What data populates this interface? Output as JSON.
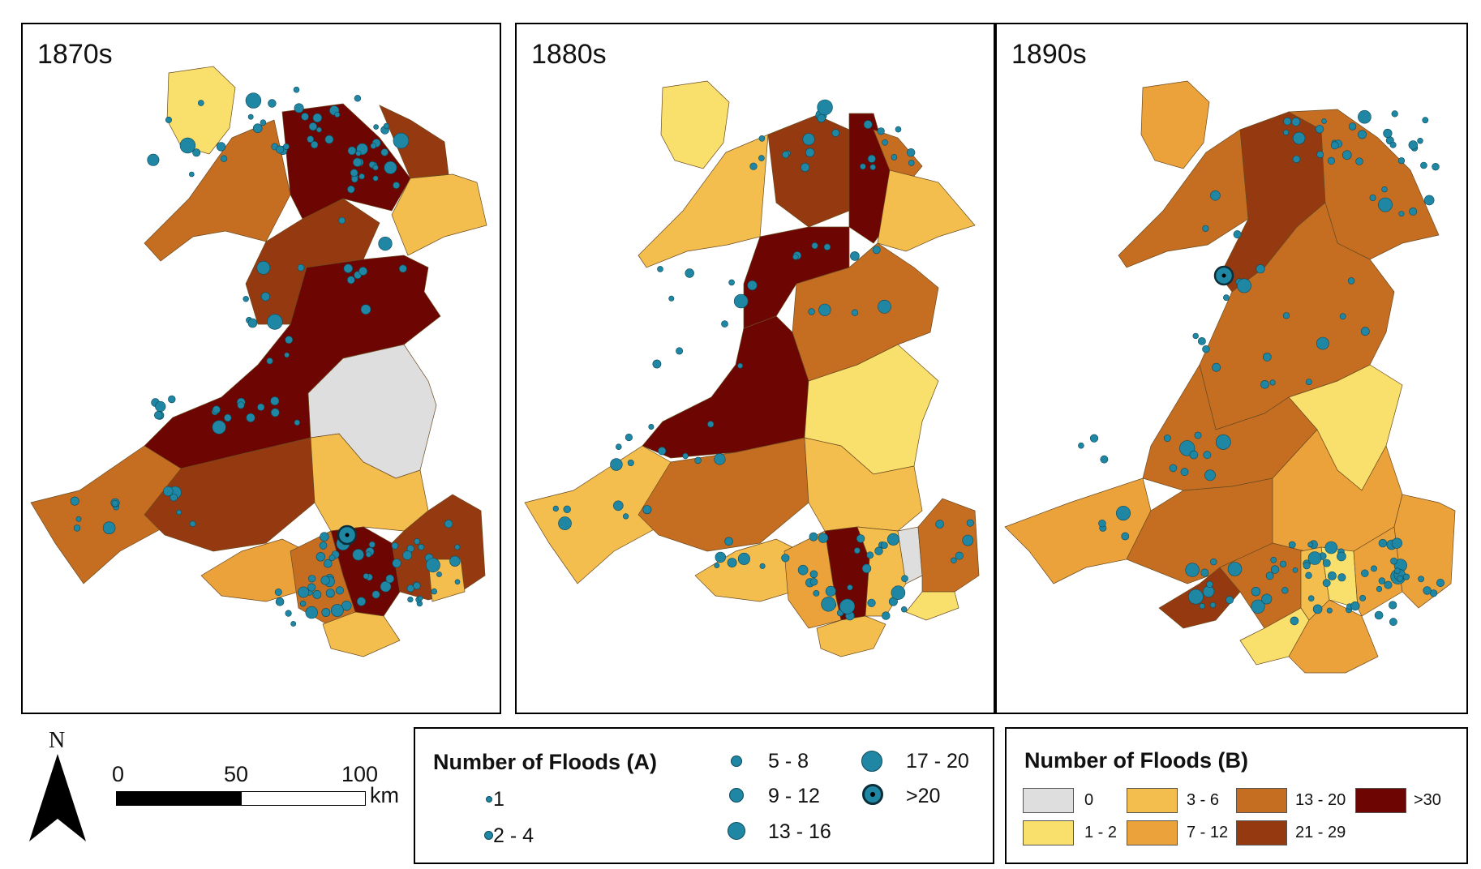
{
  "colors": {
    "c0": "#dedede",
    "c1_2": "#f9df6b",
    "c3_6": "#f3be4e",
    "c7_12": "#ecA23a",
    "c13_20": "#c56e22",
    "c21_29": "#953a10",
    "c30": "#6d0502",
    "dot": "#1f87a3"
  },
  "panels": [
    {
      "decade": "1870s"
    },
    {
      "decade": "1880s"
    },
    {
      "decade": "1890s"
    }
  ],
  "scale": {
    "north": "N",
    "ticks": [
      "0",
      "50",
      "100"
    ],
    "unit": "km"
  },
  "legend_a": {
    "title": "Number of Floods (A)",
    "items": [
      {
        "label": "1",
        "icon": "point-size-1"
      },
      {
        "label": "2 - 4",
        "icon": "point-size-2"
      },
      {
        "label": "5 - 8",
        "icon": "point-size-3"
      },
      {
        "label": "9 - 12",
        "icon": "point-size-4"
      },
      {
        "label": "13 - 16",
        "icon": "point-size-5"
      },
      {
        "label": "17 - 20",
        "icon": "point-size-6"
      },
      {
        "label": ">20",
        "icon": "point-with-center-dot"
      }
    ]
  },
  "legend_b": {
    "title": "Number of Floods (B)",
    "items": [
      {
        "label": "0",
        "color": "#dedede"
      },
      {
        "label": "1 - 2",
        "color": "#f9df6b"
      },
      {
        "label": "3 - 6",
        "color": "#f3be4e"
      },
      {
        "label": "7 - 12",
        "color": "#eca23a"
      },
      {
        "label": "13 - 20",
        "color": "#c56e22"
      },
      {
        "label": "21 - 29",
        "color": "#953a10"
      },
      {
        "label": ">30",
        "color": "#6d0502"
      }
    ]
  }
}
